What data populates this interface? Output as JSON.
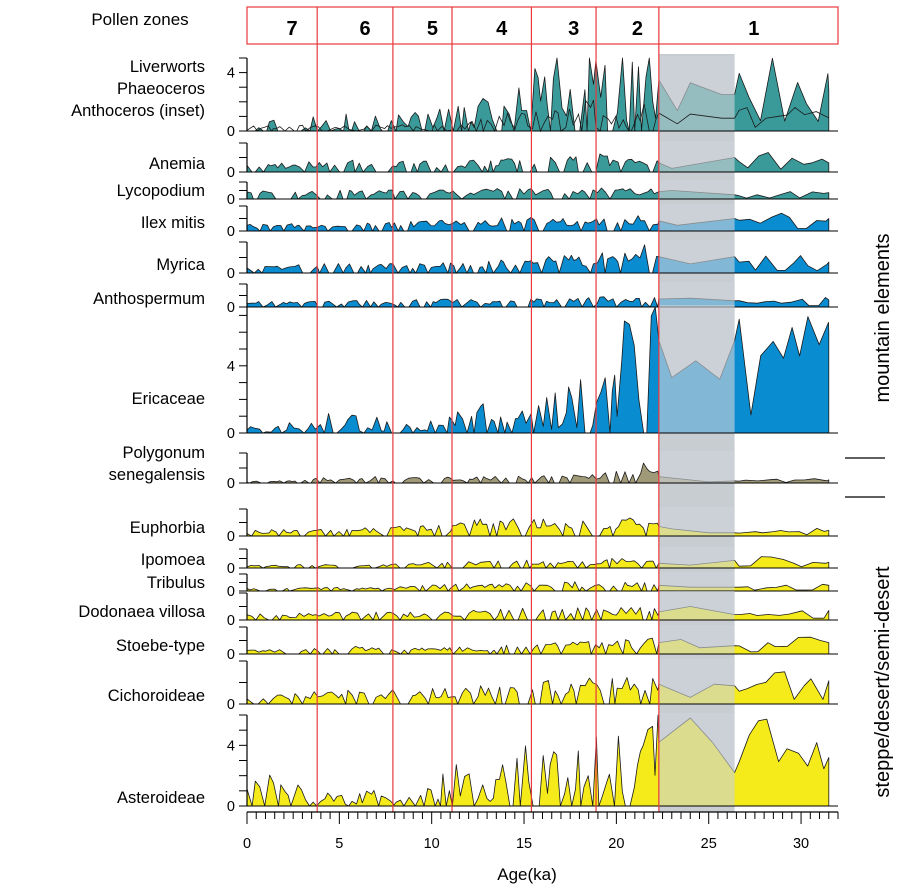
{
  "chart_data": {
    "type": "area",
    "title": "",
    "xlabel": "Age(ka)",
    "xlim": [
      0,
      32
    ],
    "x_ticks": [
      "0",
      "5",
      "10",
      "15",
      "20",
      "25",
      "30"
    ],
    "zones_title": "Pollen zones",
    "zones": [
      {
        "label": "7",
        "from": 0,
        "to": 3.8
      },
      {
        "label": "6",
        "from": 3.8,
        "to": 7.9
      },
      {
        "label": "5",
        "from": 7.9,
        "to": 11.1
      },
      {
        "label": "4",
        "from": 11.1,
        "to": 15.4
      },
      {
        "label": "3",
        "from": 15.4,
        "to": 18.9
      },
      {
        "label": "2",
        "from": 18.9,
        "to": 22.3
      },
      {
        "label": "1",
        "from": 22.3,
        "to": 32
      }
    ],
    "hiatus": [
      22.3,
      26.4
    ],
    "colors": {
      "spores": "#3A9A9A",
      "mountain": "#0A8CD0",
      "polygonum": "#A09A78",
      "steppe": "#F5EB1A",
      "hiatus": "#C8CDD2",
      "zone_line": "#E8383D"
    },
    "groups": [
      "mountain elements",
      "steppe/desert/semi-desert"
    ],
    "series": [
      {
        "name": "Liverworts\nPhaeoceros\nAnthoceros (inset)",
        "color": "spores",
        "ymax": 5.0,
        "ticks": [
          "0",
          "4"
        ],
        "inset": true,
        "profile": [
          [
            0,
            0.5
          ],
          [
            4,
            0.6
          ],
          [
            8,
            0.6
          ],
          [
            11,
            0.8
          ],
          [
            13,
            1.4
          ],
          [
            15,
            2.2
          ],
          [
            17,
            2.8
          ],
          [
            19,
            3.2
          ],
          [
            21,
            3.6
          ],
          [
            22.3,
            3.5
          ],
          [
            23.3,
            1.4
          ],
          [
            24,
            3.3
          ],
          [
            25.7,
            2.5
          ],
          [
            26.4,
            2.5
          ],
          [
            27.3,
            3.6
          ],
          [
            29,
            3.4
          ],
          [
            31,
            3.3
          ],
          [
            31.5,
            2.8
          ]
        ]
      },
      {
        "name": "Anemia",
        "color": "spores",
        "ymax": 1.6,
        "ticks": [
          "0"
        ],
        "profile": [
          [
            0,
            0.25
          ],
          [
            5,
            0.45
          ],
          [
            8,
            0.4
          ],
          [
            11,
            0.45
          ],
          [
            15,
            0.5
          ],
          [
            19,
            0.7
          ],
          [
            22.3,
            0.5
          ],
          [
            23,
            0.2
          ],
          [
            26.4,
            0.8
          ],
          [
            27,
            1.2
          ],
          [
            28,
            0.8
          ],
          [
            31,
            0.7
          ],
          [
            31.5,
            0.5
          ]
        ]
      },
      {
        "name": "Lycopodium",
        "color": "spores",
        "ymax": 0.8,
        "ticks": [
          "0"
        ],
        "profile": [
          [
            0,
            0.25
          ],
          [
            10,
            0.3
          ],
          [
            15,
            0.35
          ],
          [
            20,
            0.35
          ],
          [
            22.3,
            0.35
          ],
          [
            23,
            0.4
          ],
          [
            26.4,
            0.2
          ],
          [
            31.5,
            0.3
          ]
        ]
      },
      {
        "name": "Ilex mitis",
        "color": "mountain",
        "ymax": 1.1,
        "ticks": [
          "0"
        ],
        "profile": [
          [
            0,
            0.2
          ],
          [
            6,
            0.25
          ],
          [
            11,
            0.35
          ],
          [
            15,
            0.4
          ],
          [
            20,
            0.45
          ],
          [
            22.3,
            0.45
          ],
          [
            23.3,
            0.25
          ],
          [
            26.4,
            0.55
          ],
          [
            31.5,
            0.55
          ]
        ]
      },
      {
        "name": "Myrica",
        "color": "mountain",
        "ymax": 1.7,
        "ticks": [
          "0"
        ],
        "profile": [
          [
            0,
            0.25
          ],
          [
            6,
            0.4
          ],
          [
            11,
            0.5
          ],
          [
            15,
            0.55
          ],
          [
            19,
            0.75
          ],
          [
            21,
            1.2
          ],
          [
            22.3,
            0.9
          ],
          [
            24,
            0.5
          ],
          [
            26.4,
            0.9
          ],
          [
            28,
            0.75
          ],
          [
            31.5,
            0.6
          ]
        ]
      },
      {
        "name": "Anthospermum",
        "color": "mountain",
        "ymax": 1.3,
        "ticks": [
          "0"
        ],
        "profile": [
          [
            0,
            0.2
          ],
          [
            10,
            0.3
          ],
          [
            15,
            0.3
          ],
          [
            20,
            0.4
          ],
          [
            22.3,
            0.45
          ],
          [
            24,
            0.5
          ],
          [
            26.4,
            0.35
          ],
          [
            31.5,
            0.4
          ]
        ]
      },
      {
        "name": "Ericaceae",
        "color": "mountain",
        "ymax": 7.5,
        "ticks": [
          "0",
          "4"
        ],
        "profile": [
          [
            0,
            0.2
          ],
          [
            3,
            0.35
          ],
          [
            5,
            0.7
          ],
          [
            8,
            0.55
          ],
          [
            11,
            0.65
          ],
          [
            13,
            0.9
          ],
          [
            15,
            1.1
          ],
          [
            17,
            1.4
          ],
          [
            19,
            2.0
          ],
          [
            20.5,
            3.5
          ],
          [
            22,
            5.2
          ],
          [
            22.3,
            5.5
          ],
          [
            23,
            3.3
          ],
          [
            24.3,
            4.3
          ],
          [
            25.6,
            3.2
          ],
          [
            26.4,
            5.5
          ],
          [
            28,
            5.3
          ],
          [
            30,
            5.6
          ],
          [
            31.5,
            6.0
          ]
        ]
      },
      {
        "name": "Polygonum\nsenegalensis",
        "color": "polygonum",
        "ymax": 1.4,
        "ticks": [
          "0"
        ],
        "profile": [
          [
            0,
            0.05
          ],
          [
            3,
            0.15
          ],
          [
            6,
            0.2
          ],
          [
            9,
            0.2
          ],
          [
            12,
            0.22
          ],
          [
            15,
            0.25
          ],
          [
            19,
            0.3
          ],
          [
            22,
            0.7
          ],
          [
            22.3,
            0.3
          ],
          [
            25,
            0.05
          ],
          [
            26.4,
            0.1
          ],
          [
            31.5,
            0.15
          ]
        ]
      },
      {
        "name": "Euphorbia",
        "color": "steppe",
        "ymax": 1.7,
        "ticks": [
          "0"
        ],
        "profile": [
          [
            0,
            0.25
          ],
          [
            4,
            0.3
          ],
          [
            8,
            0.4
          ],
          [
            11,
            0.55
          ],
          [
            13,
            0.8
          ],
          [
            15,
            0.75
          ],
          [
            17,
            0.7
          ],
          [
            19,
            0.7
          ],
          [
            21,
            0.8
          ],
          [
            22.3,
            0.6
          ],
          [
            23,
            0.45
          ],
          [
            25,
            0.2
          ],
          [
            26.4,
            0.2
          ],
          [
            28,
            0.3
          ],
          [
            30,
            0.4
          ],
          [
            31.5,
            0.35
          ]
        ]
      },
      {
        "name": "Ipomoea",
        "color": "steppe",
        "ymax": 1.0,
        "ticks": [
          "0"
        ],
        "profile": [
          [
            0,
            0.1
          ],
          [
            8,
            0.15
          ],
          [
            12,
            0.25
          ],
          [
            16,
            0.3
          ],
          [
            20,
            0.35
          ],
          [
            22.3,
            0.25
          ],
          [
            24,
            0.15
          ],
          [
            26.4,
            0.4
          ],
          [
            27,
            0.6
          ],
          [
            29,
            0.35
          ],
          [
            31.5,
            0.3
          ]
        ]
      },
      {
        "name": "Tribulus",
        "color": "steppe",
        "ymax": 0.9,
        "ticks": [
          "0"
        ],
        "profile": [
          [
            0,
            0.1
          ],
          [
            8,
            0.15
          ],
          [
            11,
            0.25
          ],
          [
            15,
            0.3
          ],
          [
            19,
            0.35
          ],
          [
            22.3,
            0.3
          ],
          [
            24,
            0.2
          ],
          [
            26.4,
            0.2
          ],
          [
            31.5,
            0.3
          ]
        ]
      },
      {
        "name": "Dodonaea villosa",
        "color": "steppe",
        "ymax": 1.0,
        "ticks": [
          "0"
        ],
        "profile": [
          [
            0,
            0.15
          ],
          [
            5,
            0.2
          ],
          [
            10,
            0.2
          ],
          [
            15,
            0.3
          ],
          [
            20,
            0.35
          ],
          [
            22.3,
            0.3
          ],
          [
            24,
            0.5
          ],
          [
            26.4,
            0.2
          ],
          [
            31.5,
            0.35
          ]
        ]
      },
      {
        "name": "Stoebe-type",
        "color": "steppe",
        "ymax": 1.3,
        "ticks": [
          "0"
        ],
        "profile": [
          [
            0,
            0.15
          ],
          [
            6,
            0.25
          ],
          [
            10,
            0.2
          ],
          [
            15,
            0.3
          ],
          [
            19,
            0.45
          ],
          [
            22.3,
            0.55
          ],
          [
            23.5,
            0.7
          ],
          [
            24.5,
            0.3
          ],
          [
            26.4,
            0.4
          ],
          [
            28,
            0.6
          ],
          [
            31.5,
            0.55
          ]
        ]
      },
      {
        "name": "Cichoroideae",
        "color": "steppe",
        "ymax": 1.3,
        "ticks": [
          "0"
        ],
        "profile": [
          [
            0,
            0.15
          ],
          [
            5,
            0.3
          ],
          [
            8,
            0.3
          ],
          [
            11,
            0.35
          ],
          [
            15,
            0.45
          ],
          [
            19,
            0.55
          ],
          [
            22.3,
            0.6
          ],
          [
            24,
            0.2
          ],
          [
            25.3,
            0.6
          ],
          [
            26.4,
            0.55
          ],
          [
            28,
            0.7
          ],
          [
            31.5,
            0.7
          ]
        ]
      },
      {
        "name": "Asteroideae",
        "color": "steppe",
        "ymax": 6.0,
        "ticks": [
          "0",
          "4"
        ],
        "profile": [
          [
            0,
            1.2
          ],
          [
            3,
            1.0
          ],
          [
            4,
            0.4
          ],
          [
            6,
            0.6
          ],
          [
            8,
            0.5
          ],
          [
            10,
            0.8
          ],
          [
            11,
            1.4
          ],
          [
            13,
            1.8
          ],
          [
            15,
            2.4
          ],
          [
            17,
            2.8
          ],
          [
            19,
            3.3
          ],
          [
            21,
            4.0
          ],
          [
            22.3,
            4.2
          ],
          [
            24,
            5.8
          ],
          [
            25.2,
            4.2
          ],
          [
            26.4,
            2.2
          ],
          [
            27,
            4.0
          ],
          [
            29,
            4.2
          ],
          [
            31,
            3.6
          ],
          [
            31.5,
            3.2
          ]
        ]
      }
    ]
  }
}
